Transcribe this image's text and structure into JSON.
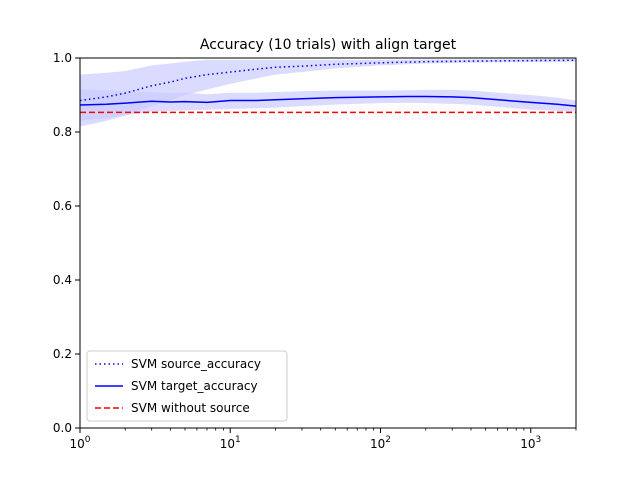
{
  "chart_data": {
    "type": "line",
    "title": "Accuracy (10 trials) with align target",
    "xlabel": "",
    "ylabel": "",
    "xscale": "log",
    "xlim": [
      1,
      2000
    ],
    "ylim": [
      0.0,
      1.0
    ],
    "x_ticks": [
      {
        "value": 1,
        "base": "10",
        "exp": "0"
      },
      {
        "value": 10,
        "base": "10",
        "exp": "1"
      },
      {
        "value": 100,
        "base": "10",
        "exp": "2"
      },
      {
        "value": 1000,
        "base": "10",
        "exp": "3"
      }
    ],
    "y_ticks": [
      {
        "value": 0.0,
        "label": "0.0"
      },
      {
        "value": 0.2,
        "label": "0.2"
      },
      {
        "value": 0.4,
        "label": "0.4"
      },
      {
        "value": 0.6,
        "label": "0.6"
      },
      {
        "value": 0.8,
        "label": "0.8"
      },
      {
        "value": 1.0,
        "label": "1.0"
      }
    ],
    "grid": false,
    "legend_position": "lower-left",
    "series": [
      {
        "name": "SVM source_accuracy",
        "style": "dotted",
        "color": "#0000ff",
        "band_color": "#ccccff",
        "x": [
          1,
          1.5,
          2,
          3,
          4,
          5,
          7,
          10,
          15,
          20,
          30,
          50,
          100,
          200,
          500,
          1000,
          2000
        ],
        "y": [
          0.885,
          0.895,
          0.905,
          0.925,
          0.935,
          0.945,
          0.955,
          0.962,
          0.97,
          0.975,
          0.978,
          0.983,
          0.987,
          0.99,
          0.992,
          0.993,
          0.994
        ],
        "lower": [
          0.815,
          0.83,
          0.845,
          0.87,
          0.885,
          0.9,
          0.915,
          0.93,
          0.945,
          0.955,
          0.962,
          0.972,
          0.98,
          0.985,
          0.988,
          0.989,
          0.99
        ],
        "upper": [
          0.955,
          0.96,
          0.965,
          0.98,
          0.985,
          0.99,
          0.995,
          0.995,
          0.995,
          0.995,
          0.995,
          0.995,
          0.995,
          0.996,
          0.996,
          0.997,
          0.998
        ]
      },
      {
        "name": "SVM target_accuracy",
        "style": "solid",
        "color": "#0000ff",
        "band_color": "#ccccff",
        "x": [
          1,
          1.5,
          2,
          3,
          4,
          5,
          7,
          10,
          15,
          20,
          30,
          50,
          70,
          100,
          150,
          200,
          300,
          400,
          500,
          700,
          1000,
          1500,
          2000
        ],
        "y": [
          0.873,
          0.875,
          0.878,
          0.883,
          0.881,
          0.882,
          0.88,
          0.885,
          0.885,
          0.887,
          0.89,
          0.893,
          0.894,
          0.895,
          0.896,
          0.896,
          0.895,
          0.893,
          0.89,
          0.885,
          0.88,
          0.875,
          0.87
        ],
        "lower": [
          0.83,
          0.838,
          0.845,
          0.855,
          0.857,
          0.858,
          0.86,
          0.862,
          0.864,
          0.866,
          0.87,
          0.874,
          0.876,
          0.878,
          0.879,
          0.878,
          0.876,
          0.874,
          0.871,
          0.866,
          0.86,
          0.857,
          0.855
        ],
        "upper": [
          0.915,
          0.913,
          0.91,
          0.908,
          0.905,
          0.906,
          0.902,
          0.906,
          0.906,
          0.908,
          0.91,
          0.912,
          0.912,
          0.912,
          0.913,
          0.914,
          0.914,
          0.912,
          0.909,
          0.904,
          0.9,
          0.893,
          0.885
        ]
      },
      {
        "name": "SVM without source",
        "style": "dashed",
        "color": "#ff0000",
        "x": [
          1,
          2000
        ],
        "y": [
          0.853,
          0.853
        ]
      }
    ]
  }
}
